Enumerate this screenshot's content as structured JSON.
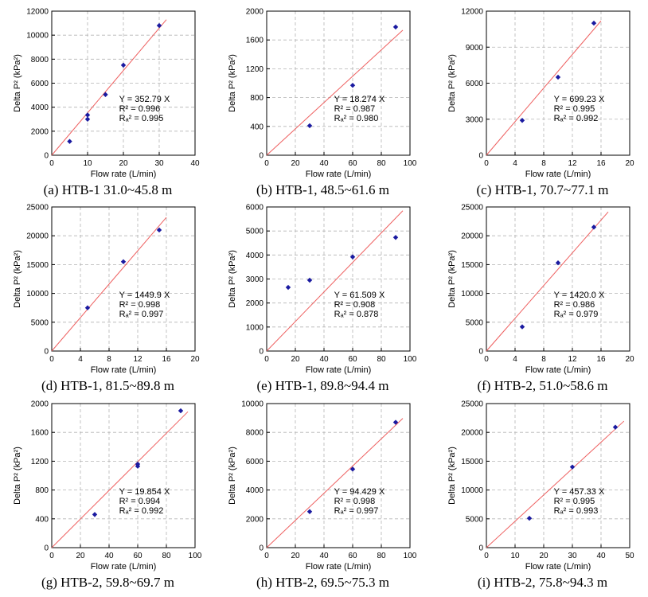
{
  "chart_data": [
    {
      "type": "scatter",
      "caption": "(a) HTB-1 31.0~45.8 m",
      "xlabel": "Flow rate (L/min)",
      "ylabel": "Delta P² (kPa²)",
      "xlim": [
        0,
        40
      ],
      "xticks": [
        0,
        10,
        20,
        30,
        40
      ],
      "ylim": [
        0,
        12000
      ],
      "yticks": [
        0,
        2000,
        4000,
        6000,
        8000,
        10000,
        12000
      ],
      "grid": true,
      "points": [
        [
          5,
          1150
        ],
        [
          10,
          3000
        ],
        [
          10,
          3350
        ],
        [
          15,
          5050
        ],
        [
          20,
          7500
        ],
        [
          30,
          10800
        ]
      ],
      "fit": {
        "slope": 352.79,
        "x_end": 32
      },
      "annotation": [
        "Y = 352.79 X",
        "R² = 0.996",
        "Rₐ² = 0.995"
      ]
    },
    {
      "type": "scatter",
      "caption": "(b) HTB-1, 48.5~61.6 m",
      "xlabel": "Flow rate (L/min)",
      "ylabel": "Delta P² (kPa²)",
      "xlim": [
        0,
        100
      ],
      "xticks": [
        0,
        20,
        40,
        60,
        80,
        100
      ],
      "ylim": [
        0,
        2000
      ],
      "yticks": [
        0,
        400,
        800,
        1200,
        1600,
        2000
      ],
      "grid": true,
      "points": [
        [
          30,
          410
        ],
        [
          60,
          970
        ],
        [
          90,
          1780
        ]
      ],
      "fit": {
        "slope": 18.274,
        "x_end": 95
      },
      "annotation": [
        "Y = 18.274 X",
        "R² = 0.987",
        "Rₐ² = 0.980"
      ]
    },
    {
      "type": "scatter",
      "caption": "(c) HTB-1, 70.7~77.1 m",
      "xlabel": "Flow rate (L/min)",
      "ylabel": "Delta P² (kPa²)",
      "xlim": [
        0,
        20
      ],
      "xticks": [
        0,
        4,
        8,
        12,
        16,
        20
      ],
      "ylim": [
        0,
        12000
      ],
      "yticks": [
        0,
        3000,
        6000,
        9000,
        12000
      ],
      "grid": true,
      "points": [
        [
          5,
          2900
        ],
        [
          10,
          6500
        ],
        [
          15,
          11000
        ]
      ],
      "fit": {
        "slope": 699.23,
        "x_end": 16
      },
      "annotation": [
        "Y = 699.23 X",
        "R² = 0.995",
        "Rₐ² = 0.992"
      ]
    },
    {
      "type": "scatter",
      "caption": "(d) HTB-1, 81.5~89.8 m",
      "xlabel": "Flow rate (L/min)",
      "ylabel": "Delta P² (kPa²)",
      "xlim": [
        0,
        20
      ],
      "xticks": [
        0,
        4,
        8,
        12,
        16,
        20
      ],
      "ylim": [
        0,
        25000
      ],
      "yticks": [
        0,
        5000,
        10000,
        15000,
        20000,
        25000
      ],
      "grid": true,
      "points": [
        [
          5,
          7500
        ],
        [
          10,
          15500
        ],
        [
          15,
          21000
        ]
      ],
      "fit": {
        "slope": 1449.9,
        "x_end": 16
      },
      "annotation": [
        "Y = 1449.9 X",
        "R² = 0.998",
        "Rₐ² = 0.997"
      ]
    },
    {
      "type": "scatter",
      "caption": "(e) HTB-1, 89.8~94.4 m",
      "xlabel": "Flow rate (L/min)",
      "ylabel": "Delta P² (kPa²)",
      "xlim": [
        0,
        100
      ],
      "xticks": [
        0,
        20,
        40,
        60,
        80,
        100
      ],
      "ylim": [
        0,
        6000
      ],
      "yticks": [
        0,
        1000,
        2000,
        3000,
        4000,
        5000,
        6000
      ],
      "grid": true,
      "points": [
        [
          15,
          2650
        ],
        [
          30,
          2950
        ],
        [
          60,
          3920
        ],
        [
          90,
          4730
        ]
      ],
      "fit": {
        "slope": 61.509,
        "x_end": 95
      },
      "annotation": [
        "Y = 61.509 X",
        "R² = 0.908",
        "Rₐ² = 0.878"
      ]
    },
    {
      "type": "scatter",
      "caption": "(f) HTB-2, 51.0~58.6 m",
      "xlabel": "Flow rate (L/min)",
      "ylabel": "Delta P² (kPa²)",
      "xlim": [
        0,
        20
      ],
      "xticks": [
        0,
        4,
        8,
        12,
        16,
        20
      ],
      "ylim": [
        0,
        25000
      ],
      "yticks": [
        0,
        5000,
        10000,
        15000,
        20000,
        25000
      ],
      "grid": true,
      "points": [
        [
          5,
          4200
        ],
        [
          10,
          15300
        ],
        [
          15,
          21500
        ]
      ],
      "fit": {
        "slope": 1420.0,
        "x_end": 17
      },
      "annotation": [
        "Y = 1420.0 X",
        "R² = 0.986",
        "Rₐ² = 0.979"
      ]
    },
    {
      "type": "scatter",
      "caption": "(g) HTB-2, 59.8~69.7 m",
      "xlabel": "Flow rate (L/min)",
      "ylabel": "Delta P² (kPa²)",
      "xlim": [
        0,
        100
      ],
      "xticks": [
        0,
        20,
        40,
        60,
        80,
        100
      ],
      "ylim": [
        0,
        2000
      ],
      "yticks": [
        0,
        400,
        800,
        1200,
        1600,
        2000
      ],
      "grid": true,
      "points": [
        [
          30,
          460
        ],
        [
          60,
          1130
        ],
        [
          60,
          1160
        ],
        [
          90,
          1900
        ]
      ],
      "fit": {
        "slope": 19.854,
        "x_end": 95
      },
      "annotation": [
        "Y = 19.854 X",
        "R² = 0.994",
        "Rₐ² = 0.992"
      ]
    },
    {
      "type": "scatter",
      "caption": "(h) HTB-2, 69.5~75.3 m",
      "xlabel": "Flow rate (L/min)",
      "ylabel": "Delta P² (kPa²)",
      "xlim": [
        0,
        100
      ],
      "xticks": [
        0,
        20,
        40,
        60,
        80,
        100
      ],
      "ylim": [
        0,
        10000
      ],
      "yticks": [
        0,
        2000,
        4000,
        6000,
        8000,
        10000
      ],
      "grid": true,
      "points": [
        [
          30,
          2500
        ],
        [
          60,
          5450
        ],
        [
          90,
          8700
        ]
      ],
      "fit": {
        "slope": 94.429,
        "x_end": 95
      },
      "annotation": [
        "Y = 94.429 X",
        "R² = 0.998",
        "Rₐ² = 0.997"
      ]
    },
    {
      "type": "scatter",
      "caption": "(i) HTB-2, 75.8~94.3 m",
      "xlabel": "Flow rate (L/min)",
      "ylabel": "Delta P² (kPa²)",
      "xlim": [
        0,
        50
      ],
      "xticks": [
        0,
        10,
        20,
        30,
        40,
        50
      ],
      "ylim": [
        0,
        25000
      ],
      "yticks": [
        0,
        5000,
        10000,
        15000,
        20000,
        25000
      ],
      "grid": true,
      "points": [
        [
          15,
          5100
        ],
        [
          30,
          14000
        ],
        [
          45,
          20900
        ]
      ],
      "fit": {
        "slope": 457.33,
        "x_end": 48
      },
      "annotation": [
        "Y = 457.33 X",
        "R² = 0.995",
        "Rₐ² = 0.993"
      ]
    }
  ],
  "colors": {
    "point": "#1a1aa0",
    "fit": "#ee6060",
    "grid": "#b4b4b4",
    "axis": "#000000"
  }
}
